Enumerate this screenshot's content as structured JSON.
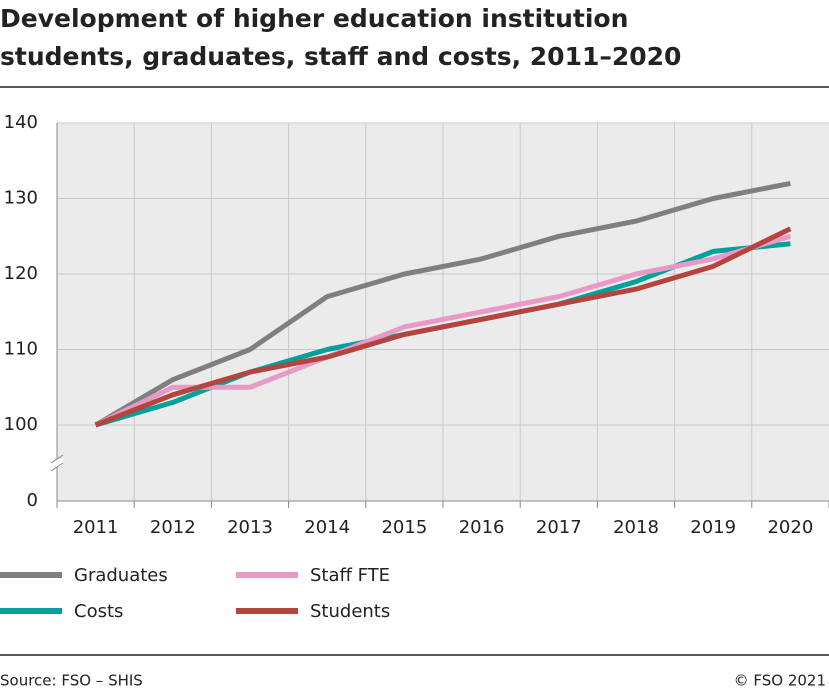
{
  "chart_data": {
    "type": "line",
    "title": [
      "Development of higher education institution",
      "students, graduates, staff and costs, 2011–2020"
    ],
    "categories": [
      "2011",
      "2012",
      "2013",
      "2014",
      "2015",
      "2016",
      "2017",
      "2018",
      "2019",
      "2020"
    ],
    "series": [
      {
        "name": "Graduates",
        "color": "#7f7f7f",
        "values": [
          100,
          106,
          110,
          117,
          120,
          122,
          125,
          127,
          130,
          132
        ]
      },
      {
        "name": "Costs",
        "color": "#00a19a",
        "values": [
          100,
          103,
          107,
          110,
          112,
          114,
          116,
          119,
          123,
          124
        ]
      },
      {
        "name": "Staff FTE",
        "color": "#e89ac7",
        "values": [
          100,
          105,
          105,
          109,
          113,
          115,
          117,
          120,
          122,
          125
        ]
      },
      {
        "name": "Students",
        "color": "#b5443e",
        "values": [
          100,
          104,
          107,
          109,
          112,
          114,
          116,
          118,
          121,
          126
        ]
      }
    ],
    "ylim": [
      0,
      140
    ],
    "ybreak": [
      0,
      100
    ],
    "yticks": [
      0,
      100,
      110,
      120,
      130,
      140
    ],
    "grid": true,
    "source": "Source: FSO – SHIS",
    "credit": "© FSO 2021"
  }
}
